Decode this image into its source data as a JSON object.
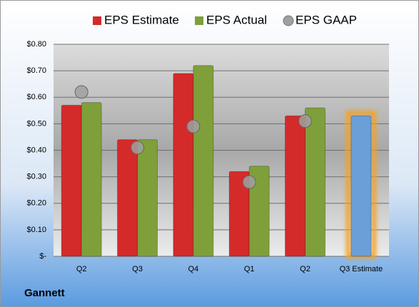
{
  "chart_data": {
    "type": "bar",
    "title": "Gannett",
    "categories": [
      "Q2",
      "Q3",
      "Q4",
      "Q1",
      "Q2",
      "Q3 Estimate"
    ],
    "series": [
      {
        "name": "EPS Estimate",
        "color": "#d42a2a",
        "point_colors": [
          null,
          null,
          null,
          null,
          null,
          "#6a9fd8"
        ],
        "values": [
          0.57,
          0.44,
          0.69,
          0.32,
          0.53,
          0.53
        ]
      },
      {
        "name": "EPS Actual",
        "color": "#7f9f3a",
        "values": [
          0.58,
          0.44,
          0.72,
          0.34,
          0.56,
          null
        ]
      },
      {
        "name": "EPS GAAP",
        "color": "#a0a0a0",
        "marker": "circle",
        "values": [
          0.62,
          0.41,
          0.49,
          0.28,
          0.51,
          null
        ]
      }
    ],
    "ylim": [
      0,
      0.8
    ],
    "yticks": [
      {
        "value": 0,
        "label": "$-"
      },
      {
        "value": 0.1,
        "label": "$0.10"
      },
      {
        "value": 0.2,
        "label": "$0.20"
      },
      {
        "value": 0.3,
        "label": "$0.30"
      },
      {
        "value": 0.4,
        "label": "$0.40"
      },
      {
        "value": 0.5,
        "label": "$0.50"
      },
      {
        "value": 0.6,
        "label": "$0.60"
      },
      {
        "value": 0.7,
        "label": "$0.70"
      },
      {
        "value": 0.8,
        "label": "$0.80"
      }
    ],
    "grid": true,
    "legend": "top"
  }
}
